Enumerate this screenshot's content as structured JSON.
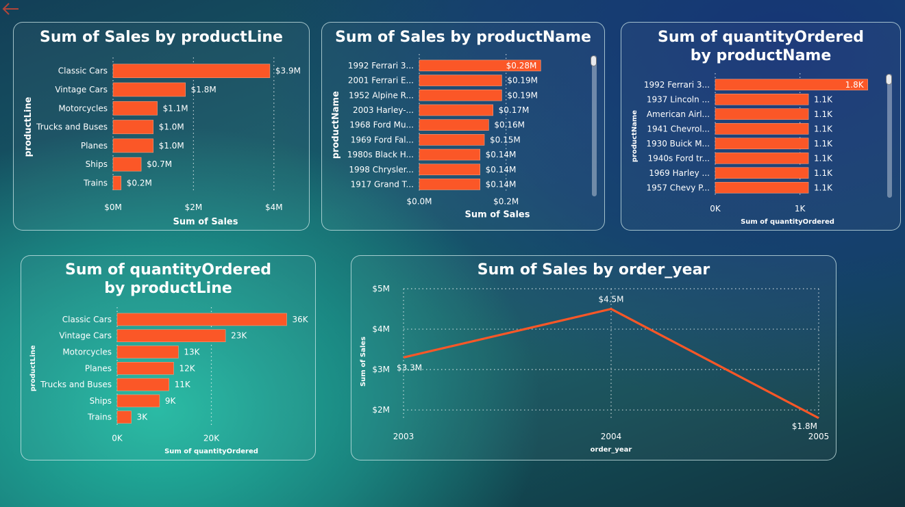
{
  "colors": {
    "bar": "#fb5727",
    "line": "#fb5727",
    "text": "#ffffff"
  },
  "icons": {
    "back": "back-arrow-icon"
  },
  "chart_data": [
    {
      "id": "sales-by-productline",
      "type": "bar",
      "orientation": "horizontal",
      "title": "Sum of Sales by productLine",
      "xlabel": "Sum of Sales",
      "ylabel": "productLine",
      "categories": [
        "Classic Cars",
        "Vintage Cars",
        "Motorcycles",
        "Trucks and Buses",
        "Planes",
        "Ships",
        "Trains"
      ],
      "values": [
        3.9,
        1.8,
        1.1,
        1.0,
        1.0,
        0.7,
        0.2
      ],
      "labels": [
        "$3.9M",
        "$1.8M",
        "$1.1M",
        "$1.0M",
        "$1.0M",
        "$0.7M",
        "$0.2M"
      ],
      "xlim": [
        0,
        4.6
      ],
      "xticks": [
        0,
        2,
        4
      ],
      "xtick_labels": [
        "$0M",
        "$2M",
        "$4M"
      ],
      "grid": true
    },
    {
      "id": "sales-by-productname",
      "type": "bar",
      "orientation": "horizontal",
      "title": "Sum of Sales by productName",
      "xlabel": "Sum of Sales",
      "ylabel": "productName",
      "categories": [
        "1992 Ferrari 3...",
        "2001 Ferrari E...",
        "1952 Alpine R...",
        "2003 Harley-...",
        "1968 Ford Mu...",
        "1969 Ford Fal...",
        "1980s Black H...",
        "1998 Chrysler...",
        "1917 Grand T..."
      ],
      "values": [
        0.28,
        0.19,
        0.19,
        0.17,
        0.16,
        0.15,
        0.14,
        0.14,
        0.14
      ],
      "labels": [
        "$0.28M",
        "$0.19M",
        "$0.19M",
        "$0.17M",
        "$0.16M",
        "$0.15M",
        "$0.14M",
        "$0.14M",
        "$0.14M"
      ],
      "xlim": [
        0,
        0.36
      ],
      "xticks": [
        0,
        0.2
      ],
      "xtick_labels": [
        "$0.0M",
        "$0.2M"
      ],
      "grid": true
    },
    {
      "id": "qty-by-productname",
      "type": "bar",
      "orientation": "horizontal",
      "title": "Sum of quantityOrdered by productName",
      "xlabel": "Sum of quantityOrdered",
      "ylabel": "productName",
      "categories": [
        "1992 Ferrari 3...",
        "1937 Lincoln ...",
        "American Airl...",
        "1941 Chevrol...",
        "1930 Buick M...",
        "1940s Ford tr...",
        "1969 Harley ...",
        "1957 Chevy P..."
      ],
      "values": [
        1.8,
        1.1,
        1.1,
        1.1,
        1.1,
        1.1,
        1.1,
        1.1
      ],
      "labels": [
        "1.8K",
        "1.1K",
        "1.1K",
        "1.1K",
        "1.1K",
        "1.1K",
        "1.1K",
        "1.1K"
      ],
      "xlim": [
        0,
        1.9
      ],
      "xticks": [
        0,
        1
      ],
      "xtick_labels": [
        "0K",
        "1K"
      ],
      "grid": true
    },
    {
      "id": "qty-by-productline",
      "type": "bar",
      "orientation": "horizontal",
      "title": "Sum of quantityOrdered by productLine",
      "xlabel": "Sum of quantityOrdered",
      "ylabel": "productLine",
      "categories": [
        "Classic Cars",
        "Vintage Cars",
        "Motorcycles",
        "Planes",
        "Trucks and Buses",
        "Ships",
        "Trains"
      ],
      "values": [
        36,
        23,
        13,
        12,
        11,
        9,
        3
      ],
      "labels": [
        "36K",
        "23K",
        "13K",
        "12K",
        "11K",
        "9K",
        "3K"
      ],
      "xlim": [
        0,
        40
      ],
      "xticks": [
        0,
        20
      ],
      "xtick_labels": [
        "0K",
        "20K"
      ],
      "grid": true
    },
    {
      "id": "sales-by-order-year",
      "type": "line",
      "title": "Sum of Sales by order_year",
      "xlabel": "order_year",
      "ylabel": "Sum of Sales",
      "x": [
        "2003",
        "2004",
        "2005"
      ],
      "values": [
        3.3,
        4.5,
        1.8
      ],
      "labels": [
        "$3.3M",
        "$4.5M",
        "$1.8M"
      ],
      "ylim": [
        1.8,
        5
      ],
      "yticks": [
        2,
        3,
        4,
        5
      ],
      "ytick_labels": [
        "$2M",
        "$3M",
        "$4M",
        "$5M"
      ],
      "grid": true
    }
  ]
}
